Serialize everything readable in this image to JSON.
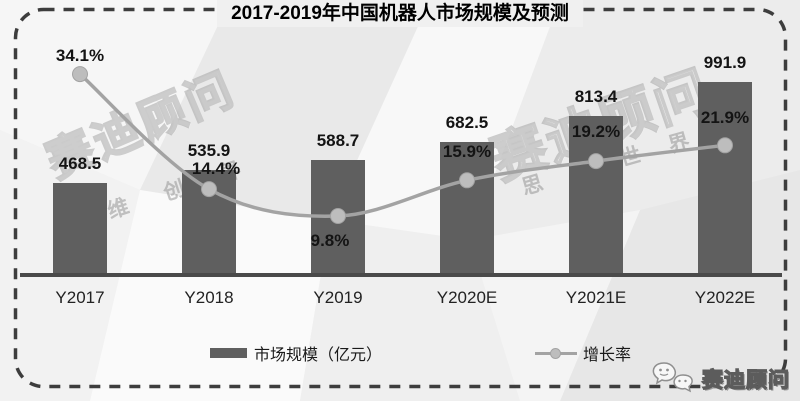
{
  "title": "2017-2019年中国机器人市场规模及预测",
  "chart_data": {
    "type": "combo-bar-line",
    "title": "2017-2019年中国机器人市场规模及预测",
    "categories": [
      "Y2017",
      "Y2018",
      "Y2019",
      "Y2020E",
      "Y2021E",
      "Y2022E"
    ],
    "series": [
      {
        "name": "市场规模（亿元）",
        "type": "bar",
        "values": [
          468.5,
          535.9,
          588.7,
          682.5,
          813.4,
          991.9
        ],
        "labels": [
          "468.5",
          "535.9",
          "588.7",
          "682.5",
          "813.4",
          "991.9"
        ]
      },
      {
        "name": "增长率",
        "type": "line",
        "values_pct": [
          34.1,
          14.4,
          9.8,
          15.9,
          19.2,
          21.9
        ],
        "labels": [
          "34.1%",
          "14.4%",
          "9.8%",
          "15.9%",
          "19.2%",
          "21.9%"
        ],
        "label_side": [
          "above",
          "above",
          "below",
          "above",
          "above",
          "above"
        ],
        "label_dy": [
          -19,
          -21,
          24,
          -29,
          -30,
          -28
        ],
        "label_dx": [
          0,
          7,
          -8,
          0,
          0,
          0
        ]
      }
    ],
    "xlabel": "",
    "ylabel": "",
    "grid": false,
    "axes_hidden": true,
    "legend_position": "bottom",
    "implied_bar_axis_range": [
      0,
      1050
    ],
    "implied_line_axis_range_pct": [
      0,
      40
    ]
  },
  "legend": {
    "bar_label": "市场规模（亿元）",
    "line_label": "增长率"
  },
  "watermarks": {
    "brand_large_a": "赛迪顾问",
    "slogan_a": "维 创 界",
    "brand_large_b": "赛迪顾问",
    "slogan_b": "思 造 世 界"
  },
  "logo": {
    "icon": "wechat-icon",
    "text": "赛迪顾问"
  },
  "colors": {
    "bar": "#5f5f5f",
    "line": "#a3a3a3",
    "dot": "#bdbdbd",
    "axis": "#4a4a4a",
    "label_text": "#141414",
    "border_dash": "#3d3d3d",
    "background": "#efefef",
    "watermark": "#bfbfbf"
  }
}
